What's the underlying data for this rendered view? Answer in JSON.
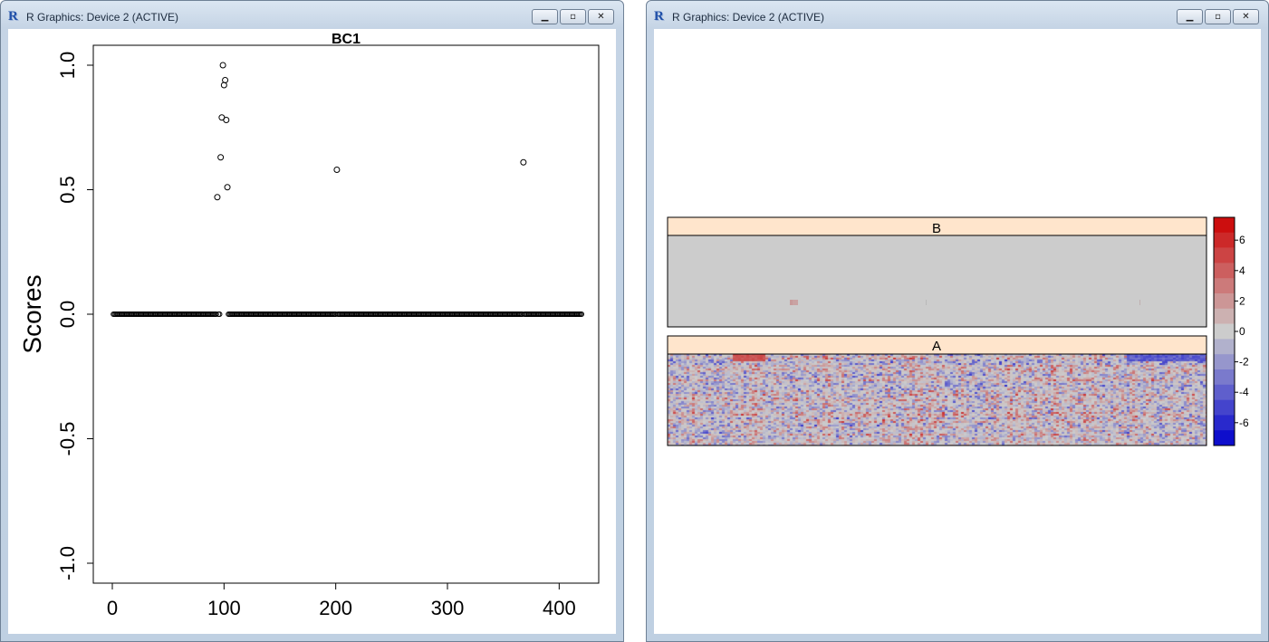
{
  "windows": [
    {
      "title": "R Graphics: Device 2 (ACTIVE)"
    },
    {
      "title": "R Graphics: Device 2 (ACTIVE)"
    }
  ],
  "window_buttons": {
    "minimize": "minimize-icon",
    "maximize": "maximize-icon",
    "close": "close-icon"
  },
  "chart_data": [
    {
      "type": "scatter",
      "title": "BC1",
      "ylabel": "Scores",
      "xlabel": "",
      "xlim": [
        0,
        420
      ],
      "ylim": [
        -1.0,
        1.0
      ],
      "xticks": [
        "0",
        "100",
        "200",
        "300",
        "400"
      ],
      "yticks": [
        "-1.0",
        "-0.5",
        "0.0",
        "0.5",
        "1.0"
      ],
      "baseline": {
        "y": 0,
        "x_from": 1,
        "x_to": 420
      },
      "points": [
        {
          "x": 94,
          "y": 0.47
        },
        {
          "x": 97,
          "y": 0.63
        },
        {
          "x": 98,
          "y": 0.79
        },
        {
          "x": 99,
          "y": 1.0
        },
        {
          "x": 100,
          "y": 0.92
        },
        {
          "x": 101,
          "y": 0.94
        },
        {
          "x": 102,
          "y": 0.78
        },
        {
          "x": 103,
          "y": 0.51
        },
        {
          "x": 201,
          "y": 0.58
        },
        {
          "x": 368,
          "y": 0.61
        }
      ],
      "colors": {
        "point": "#000000"
      }
    },
    {
      "type": "heatmap",
      "panels": [
        {
          "label": "B",
          "strip_color": "#ffe5cc",
          "background": "#cccccc"
        },
        {
          "label": "A",
          "strip_color": "#ffe5cc"
        }
      ],
      "colorkey": {
        "ticks": [
          "-6",
          "-4",
          "-2",
          "0",
          "2",
          "4",
          "6"
        ],
        "range": [
          -7.5,
          7.5
        ],
        "low_color": "#0000cc",
        "mid_color": "#cccccc",
        "high_color": "#cc0000"
      }
    }
  ]
}
